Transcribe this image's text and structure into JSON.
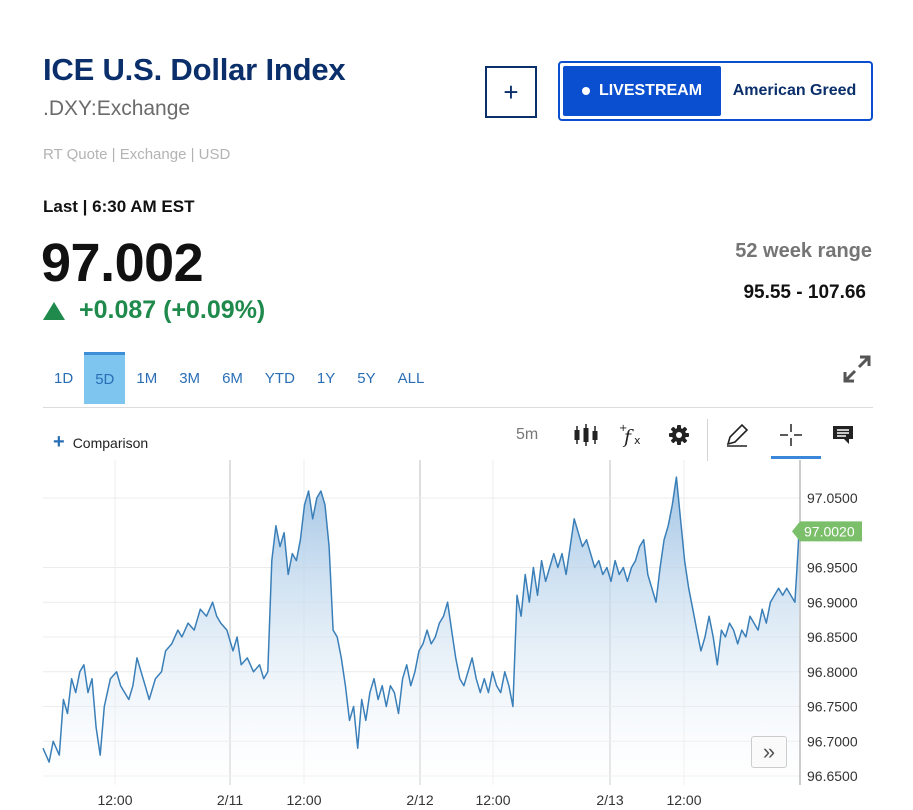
{
  "header": {
    "title": "ICE U.S. Dollar Index",
    "symbol": ".DXY:Exchange",
    "rt_quote": "RT Quote | Exchange | USD",
    "add_label": "+",
    "livestream_label": "LIVESTREAM",
    "show_label": "American Greed"
  },
  "quote": {
    "last_label": "Last | 6:30 AM EST",
    "price": "97.002",
    "change": "+0.087 (+0.09%)",
    "week_range_label": "52 week range",
    "week_range_value": "95.55 - 107.66"
  },
  "tabs": [
    {
      "label": "1D",
      "active": false
    },
    {
      "label": "5D",
      "active": true
    },
    {
      "label": "1M",
      "active": false
    },
    {
      "label": "3M",
      "active": false
    },
    {
      "label": "6M",
      "active": false
    },
    {
      "label": "YTD",
      "active": false
    },
    {
      "label": "1Y",
      "active": false
    },
    {
      "label": "5Y",
      "active": false
    },
    {
      "label": "ALL",
      "active": false
    }
  ],
  "toolbar": {
    "comparison_label": "Comparison",
    "interval": "5m",
    "icons": [
      "candlestick-icon",
      "function-icon",
      "gear-icon",
      "pencil-icon",
      "crosshair-icon",
      "comment-icon"
    ]
  },
  "colors": {
    "title": "#0a2f6b",
    "accent": "#0b4fd1",
    "positive": "#1f8a4c",
    "line": "#3a7fb8",
    "last_tag": "#7cbf6a"
  },
  "chart_data": {
    "type": "area",
    "x_tick_labels": [
      "12:00",
      "2/11",
      "12:00",
      "2/12",
      "12:00",
      "2/13",
      "12:00"
    ],
    "y_tick_labels": [
      "97.0500",
      "96.9500",
      "96.9000",
      "96.8500",
      "96.8000",
      "96.7500",
      "96.7000",
      "96.6500"
    ],
    "ylim": [
      96.65,
      97.08
    ],
    "last_value_label": "97.0020",
    "last_value": 97.002,
    "grid": true,
    "series": [
      {
        "points": [
          [
            0,
            96.69
          ],
          [
            3,
            96.67
          ],
          [
            5,
            96.7
          ],
          [
            8,
            96.68
          ],
          [
            10,
            96.76
          ],
          [
            12,
            96.74
          ],
          [
            14,
            96.79
          ],
          [
            16,
            96.77
          ],
          [
            18,
            96.8
          ],
          [
            20,
            96.81
          ],
          [
            22,
            96.77
          ],
          [
            24,
            96.79
          ],
          [
            26,
            96.72
          ],
          [
            28,
            96.68
          ],
          [
            30,
            96.75
          ],
          [
            33,
            96.79
          ],
          [
            36,
            96.8
          ],
          [
            38,
            96.78
          ],
          [
            40,
            96.77
          ],
          [
            42,
            96.76
          ],
          [
            44,
            96.78
          ],
          [
            46,
            96.82
          ],
          [
            48,
            96.8
          ],
          [
            50,
            96.78
          ],
          [
            52,
            96.76
          ],
          [
            55,
            96.79
          ],
          [
            58,
            96.8
          ],
          [
            60,
            96.83
          ],
          [
            63,
            96.84
          ],
          [
            66,
            96.86
          ],
          [
            68,
            96.85
          ],
          [
            71,
            96.87
          ],
          [
            74,
            96.86
          ],
          [
            77,
            96.89
          ],
          [
            80,
            96.88
          ],
          [
            83,
            96.9
          ],
          [
            85,
            96.88
          ],
          [
            87,
            96.87
          ],
          [
            90,
            96.86
          ],
          [
            93,
            96.83
          ],
          [
            95,
            96.85
          ],
          [
            97,
            96.81
          ],
          [
            100,
            96.82
          ],
          [
            103,
            96.8
          ],
          [
            106,
            96.81
          ],
          [
            108,
            96.79
          ],
          [
            110,
            96.8
          ],
          [
            112,
            96.96
          ],
          [
            114,
            97.01
          ],
          [
            116,
            96.98
          ],
          [
            118,
            97.0
          ],
          [
            120,
            96.94
          ],
          [
            122,
            96.97
          ],
          [
            124,
            96.96
          ],
          [
            126,
            96.99
          ],
          [
            128,
            97.04
          ],
          [
            130,
            97.06
          ],
          [
            132,
            97.02
          ],
          [
            134,
            97.05
          ],
          [
            136,
            97.06
          ],
          [
            138,
            97.04
          ],
          [
            140,
            96.98
          ],
          [
            142,
            96.86
          ],
          [
            144,
            96.85
          ],
          [
            146,
            96.82
          ],
          [
            148,
            96.78
          ],
          [
            150,
            96.73
          ],
          [
            152,
            96.75
          ],
          [
            154,
            96.69
          ],
          [
            156,
            96.76
          ],
          [
            158,
            96.73
          ],
          [
            160,
            96.77
          ],
          [
            162,
            96.79
          ],
          [
            164,
            96.76
          ],
          [
            166,
            96.78
          ],
          [
            168,
            96.75
          ],
          [
            170,
            96.78
          ],
          [
            172,
            96.77
          ],
          [
            174,
            96.74
          ],
          [
            176,
            96.79
          ],
          [
            178,
            96.81
          ],
          [
            180,
            96.78
          ],
          [
            182,
            96.8
          ],
          [
            184,
            96.83
          ],
          [
            186,
            96.84
          ],
          [
            188,
            96.86
          ],
          [
            190,
            96.84
          ],
          [
            192,
            96.85
          ],
          [
            194,
            96.87
          ],
          [
            196,
            96.88
          ],
          [
            198,
            96.9
          ],
          [
            200,
            96.86
          ],
          [
            202,
            96.82
          ],
          [
            204,
            96.79
          ],
          [
            206,
            96.78
          ],
          [
            208,
            96.8
          ],
          [
            210,
            96.82
          ],
          [
            212,
            96.79
          ],
          [
            214,
            96.77
          ],
          [
            216,
            96.79
          ],
          [
            218,
            96.77
          ],
          [
            220,
            96.8
          ],
          [
            222,
            96.78
          ],
          [
            224,
            96.77
          ],
          [
            226,
            96.8
          ],
          [
            228,
            96.78
          ],
          [
            230,
            96.75
          ],
          [
            232,
            96.91
          ],
          [
            234,
            96.88
          ],
          [
            236,
            96.94
          ],
          [
            238,
            96.9
          ],
          [
            240,
            96.95
          ],
          [
            242,
            96.91
          ],
          [
            244,
            96.96
          ],
          [
            246,
            96.93
          ],
          [
            248,
            96.95
          ],
          [
            250,
            96.97
          ],
          [
            252,
            96.95
          ],
          [
            254,
            96.97
          ],
          [
            256,
            96.94
          ],
          [
            258,
            96.98
          ],
          [
            260,
            97.02
          ],
          [
            262,
            97.0
          ],
          [
            264,
            96.98
          ],
          [
            266,
            96.99
          ],
          [
            268,
            96.97
          ],
          [
            270,
            96.95
          ],
          [
            272,
            96.96
          ],
          [
            274,
            96.94
          ],
          [
            276,
            96.95
          ],
          [
            278,
            96.93
          ],
          [
            280,
            96.96
          ],
          [
            282,
            96.94
          ],
          [
            284,
            96.95
          ],
          [
            286,
            96.93
          ],
          [
            288,
            96.95
          ],
          [
            290,
            96.96
          ],
          [
            292,
            96.98
          ],
          [
            294,
            96.99
          ],
          [
            296,
            96.94
          ],
          [
            298,
            96.92
          ],
          [
            300,
            96.9
          ],
          [
            302,
            96.95
          ],
          [
            304,
            96.99
          ],
          [
            306,
            97.01
          ],
          [
            308,
            97.04
          ],
          [
            310,
            97.08
          ],
          [
            312,
            97.02
          ],
          [
            314,
            96.96
          ],
          [
            316,
            96.92
          ],
          [
            318,
            96.89
          ],
          [
            320,
            96.86
          ],
          [
            322,
            96.83
          ],
          [
            324,
            96.85
          ],
          [
            326,
            96.88
          ],
          [
            328,
            96.85
          ],
          [
            330,
            96.81
          ],
          [
            332,
            96.86
          ],
          [
            334,
            96.85
          ],
          [
            336,
            96.87
          ],
          [
            338,
            96.86
          ],
          [
            340,
            96.84
          ],
          [
            342,
            96.86
          ],
          [
            344,
            96.85
          ],
          [
            346,
            96.88
          ],
          [
            348,
            96.87
          ],
          [
            350,
            96.86
          ],
          [
            352,
            96.89
          ],
          [
            354,
            96.87
          ],
          [
            356,
            96.9
          ],
          [
            358,
            96.91
          ],
          [
            360,
            96.92
          ],
          [
            362,
            96.91
          ],
          [
            364,
            96.92
          ],
          [
            366,
            96.91
          ],
          [
            368,
            96.9
          ],
          [
            369,
            96.95
          ],
          [
            370,
            97.002
          ]
        ]
      }
    ]
  }
}
